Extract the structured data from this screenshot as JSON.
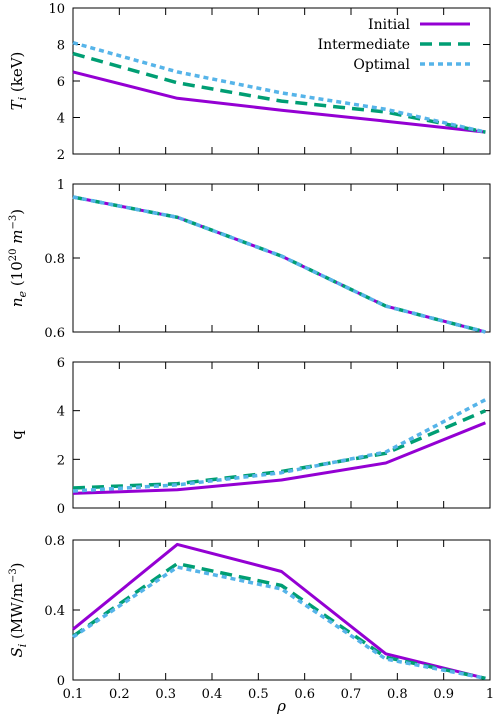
{
  "chart_data": [
    {
      "type": "line",
      "ylabel": "T_i (keV)",
      "ylabel_main": "T",
      "ylabel_sub": "i",
      "ylabel_unit": " (keV)",
      "ylim": [
        2,
        10
      ],
      "yticks": [
        "2",
        "4",
        "6",
        "8",
        "10"
      ],
      "ytick_values": [
        2,
        4,
        6,
        8,
        10
      ],
      "x": [
        0.1,
        0.325,
        0.55,
        0.775,
        0.99
      ],
      "series": [
        {
          "name": "Initial",
          "values": [
            6.5,
            5.05,
            4.4,
            3.8,
            3.2
          ]
        },
        {
          "name": "Intermediate",
          "values": [
            7.5,
            5.9,
            4.9,
            4.3,
            3.2
          ]
        },
        {
          "name": "Optimal",
          "values": [
            8.1,
            6.5,
            5.35,
            4.45,
            3.2
          ]
        }
      ],
      "legend_position": "top-right"
    },
    {
      "type": "line",
      "ylabel": "n_e (10^20 m^-3)",
      "ylabel_main": "n",
      "ylabel_sub": "e",
      "ylabel_unit": " (10",
      "ylabel_exp": "20",
      "ylabel_unit2": " m",
      "ylabel_exp2": "−3",
      "ylabel_close": ")",
      "ylim": [
        0.6,
        1.0
      ],
      "yticks": [
        "0.6",
        "0.8",
        "1"
      ],
      "ytick_values": [
        0.6,
        0.8,
        1.0
      ],
      "x": [
        0.1,
        0.325,
        0.55,
        0.775,
        0.99
      ],
      "series": [
        {
          "name": "Initial",
          "values": [
            0.965,
            0.91,
            0.805,
            0.67,
            0.6
          ]
        },
        {
          "name": "Intermediate",
          "values": [
            0.965,
            0.91,
            0.805,
            0.67,
            0.6
          ]
        },
        {
          "name": "Optimal",
          "values": [
            0.965,
            0.91,
            0.805,
            0.67,
            0.6
          ]
        }
      ]
    },
    {
      "type": "line",
      "ylabel": "q",
      "ylim": [
        0,
        6
      ],
      "yticks": [
        "0",
        "2",
        "4",
        "6"
      ],
      "ytick_values": [
        0,
        2,
        4,
        6
      ],
      "x": [
        0.1,
        0.325,
        0.55,
        0.775,
        0.99
      ],
      "series": [
        {
          "name": "Initial",
          "values": [
            0.6,
            0.75,
            1.15,
            1.85,
            3.5
          ]
        },
        {
          "name": "Intermediate",
          "values": [
            0.82,
            1.0,
            1.5,
            2.25,
            4.0
          ]
        },
        {
          "name": "Optimal",
          "values": [
            0.7,
            0.95,
            1.45,
            2.3,
            4.45
          ]
        }
      ]
    },
    {
      "type": "line",
      "ylabel": "S_i (MW/m^-3)",
      "ylabel_main": "S",
      "ylabel_sub": "i",
      "ylabel_unit": " (MW/m",
      "ylabel_exp": "−3",
      "ylabel_close": ")",
      "ylim": [
        0,
        0.8
      ],
      "yticks": [
        "0",
        "0.4",
        "0.8"
      ],
      "ytick_values": [
        0,
        0.4,
        0.8
      ],
      "x": [
        0.1,
        0.325,
        0.55,
        0.775,
        0.99
      ],
      "series": [
        {
          "name": "Initial",
          "values": [
            0.29,
            0.775,
            0.62,
            0.15,
            0.01
          ]
        },
        {
          "name": "Intermediate",
          "values": [
            0.25,
            0.665,
            0.54,
            0.13,
            0.01
          ]
        },
        {
          "name": "Optimal",
          "values": [
            0.245,
            0.645,
            0.52,
            0.12,
            0.01
          ]
        }
      ],
      "xlabel": "ρ",
      "xticks": [
        "0.1",
        "0.2",
        "0.3",
        "0.4",
        "0.5",
        "0.6",
        "0.7",
        "0.8",
        "0.9",
        "1"
      ],
      "xtick_values": [
        0.1,
        0.2,
        0.3,
        0.4,
        0.5,
        0.6,
        0.7,
        0.8,
        0.9,
        1.0
      ]
    }
  ],
  "xlim": [
    0.1,
    1.0
  ],
  "series_style": [
    {
      "name": "Initial",
      "color": "#9400d3",
      "dash": "solid"
    },
    {
      "name": "Intermediate",
      "color": "#009e73",
      "dash": "dashed"
    },
    {
      "name": "Optimal",
      "color": "#56b4e9",
      "dash": "dotted"
    }
  ]
}
